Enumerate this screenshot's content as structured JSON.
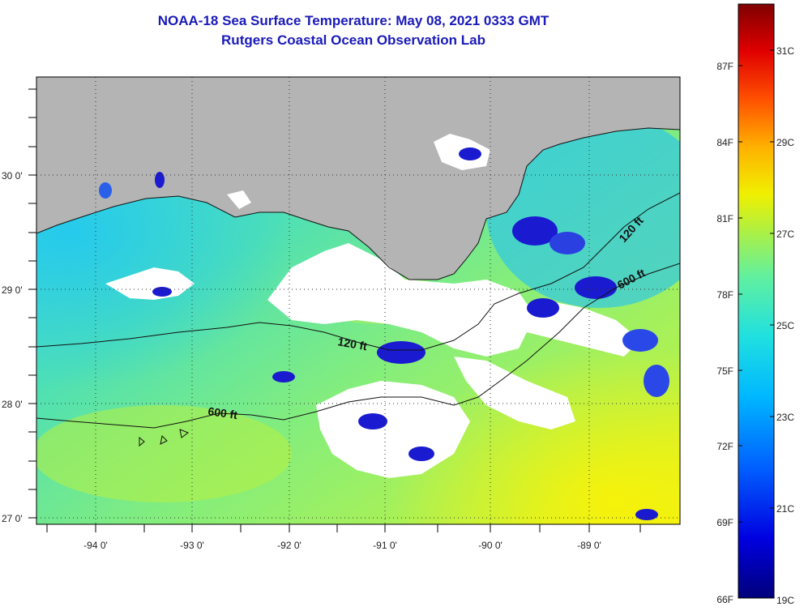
{
  "header": {
    "title": "NOAA-18 Sea Surface Temperature:  May 08, 2021 0333 GMT",
    "subtitle": "Rutgers Coastal Ocean Observation Lab"
  },
  "map": {
    "lat_labels": [
      "30 0'",
      "29 0'",
      "28 0'",
      "27 0'"
    ],
    "lon_labels": [
      "-94 0'",
      "-93 0'",
      "-92 0'",
      "-91 0'",
      "-90 0'",
      "-89 0'"
    ],
    "contour_labels": [
      "120 ft",
      "600 ft",
      "120 ft",
      "600 ft"
    ],
    "colors": {
      "land": "#b4b4b4",
      "cloud": "#ffffff",
      "grid": "#333333"
    }
  },
  "colorbar": {
    "fahrenheit": [
      "87F",
      "84F",
      "81F",
      "78F",
      "75F",
      "72F",
      "69F",
      "66F"
    ],
    "celsius": [
      "31C",
      "29C",
      "27C",
      "25C",
      "23C",
      "21C",
      "19C"
    ]
  }
}
